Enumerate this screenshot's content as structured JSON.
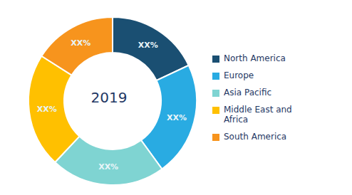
{
  "chart_data": {
    "type": "pie",
    "categories": [
      "North America",
      "Europe",
      "Asia Pacific",
      "Middle East and\nAfrica",
      "South America"
    ],
    "values": [
      18,
      22,
      22,
      22,
      16
    ],
    "value_labels": [
      "XX%",
      "XX%",
      "XX%",
      "XX%",
      "XX%"
    ],
    "data_labels": true,
    "colors": [
      "#1a4f72",
      "#29abe2",
      "#7fd4d2",
      "#ffc000",
      "#f7941d"
    ],
    "annotations": [
      "2019"
    ],
    "legend": "right"
  }
}
